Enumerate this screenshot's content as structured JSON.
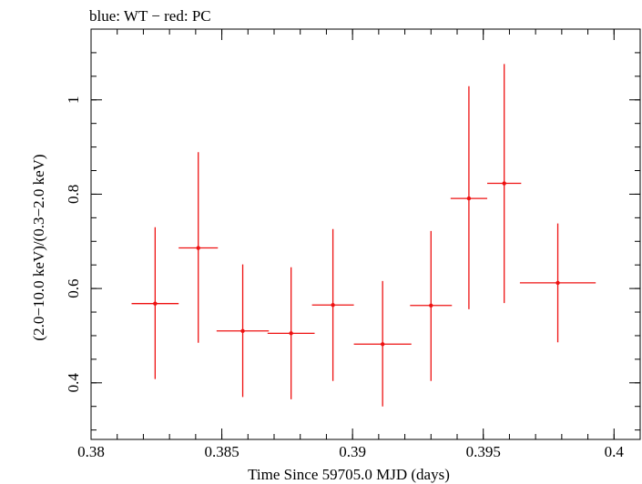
{
  "chart_data": {
    "type": "scatter",
    "title": "blue: WT − red: PC",
    "xlabel": "Time Since 59705.0 MJD (days)",
    "ylabel": "(2.0−10.0 keV)/(0.3−2.0 keV)",
    "xlim": [
      0.38,
      0.401
    ],
    "ylim": [
      0.28,
      1.15
    ],
    "x_ticks": [
      {
        "value": 0.38,
        "label": "0.38"
      },
      {
        "value": 0.385,
        "label": "0.385"
      },
      {
        "value": 0.39,
        "label": "0.39"
      },
      {
        "value": 0.395,
        "label": "0.395"
      },
      {
        "value": 0.4,
        "label": "0.4"
      }
    ],
    "y_ticks": [
      {
        "value": 0.4,
        "label": "0.4"
      },
      {
        "value": 0.6,
        "label": "0.6"
      },
      {
        "value": 0.8,
        "label": "0.8"
      },
      {
        "value": 1.0,
        "label": "1"
      }
    ],
    "grid": false,
    "series": [
      {
        "color": "#ee1111",
        "points": [
          {
            "x": 0.38245,
            "xerr": 0.0009,
            "y": 0.568,
            "ylow": 0.408,
            "yhigh": 0.73
          },
          {
            "x": 0.3841,
            "xerr": 0.00075,
            "y": 0.686,
            "ylow": 0.485,
            "yhigh": 0.889
          },
          {
            "x": 0.3858,
            "xerr": 0.001,
            "y": 0.51,
            "ylow": 0.37,
            "yhigh": 0.651
          },
          {
            "x": 0.38765,
            "xerr": 0.0009,
            "y": 0.505,
            "ylow": 0.365,
            "yhigh": 0.645
          },
          {
            "x": 0.38925,
            "xerr": 0.0008,
            "y": 0.565,
            "ylow": 0.404,
            "yhigh": 0.726
          },
          {
            "x": 0.39115,
            "xerr": 0.0011,
            "y": 0.482,
            "ylow": 0.35,
            "yhigh": 0.616
          },
          {
            "x": 0.393,
            "xerr": 0.0008,
            "y": 0.564,
            "ylow": 0.404,
            "yhigh": 0.722
          },
          {
            "x": 0.39445,
            "xerr": 0.0007,
            "y": 0.791,
            "ylow": 0.556,
            "yhigh": 1.029
          },
          {
            "x": 0.3958,
            "xerr": 0.00065,
            "y": 0.823,
            "ylow": 0.569,
            "yhigh": 1.076
          },
          {
            "x": 0.39785,
            "xerr": 0.00145,
            "y": 0.612,
            "ylow": 0.486,
            "yhigh": 0.738
          }
        ]
      }
    ]
  }
}
